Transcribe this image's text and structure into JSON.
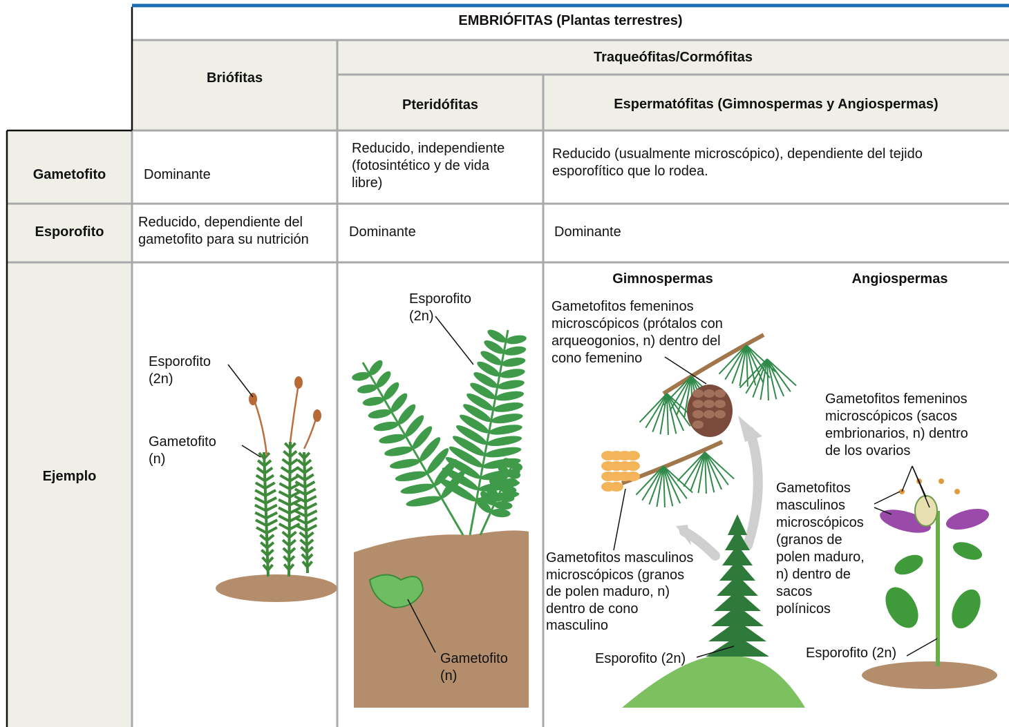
{
  "header": {
    "title": "EMBRIÓFITAS (Plantas terrestres)",
    "subgroup": "Traqueófitas/Cormófitas"
  },
  "columns": [
    "Briófitas",
    "Pteridófitas",
    "Espermatófitas (Gimnospermas y Angiospermas)"
  ],
  "rows": [
    {
      "label": "Gametofito",
      "cells": [
        "Dominante",
        "Reducido, independiente\n(fotosintético y de vida\nlibre)",
        "Reducido (usualmente microscópico), dependiente del tejido\nesporofítico que lo rodea."
      ]
    },
    {
      "label": "Esporofito",
      "cells": [
        "Reducido, dependiente del\ngametofito para su nutrición",
        "Dominante",
        "Dominante"
      ]
    },
    {
      "label": "Ejemplo"
    }
  ],
  "examples": {
    "briofitas": {
      "labels": [
        "Esporofito\n(2n)",
        "Gametofito\n(n)"
      ]
    },
    "pteridofitas": {
      "labels": [
        "Esporofito\n(2n)",
        "Gametofito\n(n)"
      ]
    },
    "gimnospermas": {
      "title": "Gimnospermas",
      "labels": [
        "Gametofitos femeninos\nmicroscópicos (prótalos con\narqueogonios, n) dentro del\ncono femenino",
        "Gametofitos masculinos\nmicroscópicos (granos\nde polen maduro, n)\ndentro de cono\nmasculino",
        "Esporofito (2n)"
      ]
    },
    "angiospermas": {
      "title": "Angiospermas",
      "labels": [
        "Gametofitos femeninos\nmicroscópicos (sacos\nembrionarios, n) dentro\nde los ovarios",
        "Gametofitos\nmasculinos\nmicroscópicos\n(granos de\npolen maduro,\nn) dentro de\nsacos\npolínicos",
        "Esporofito (2n)"
      ]
    }
  }
}
